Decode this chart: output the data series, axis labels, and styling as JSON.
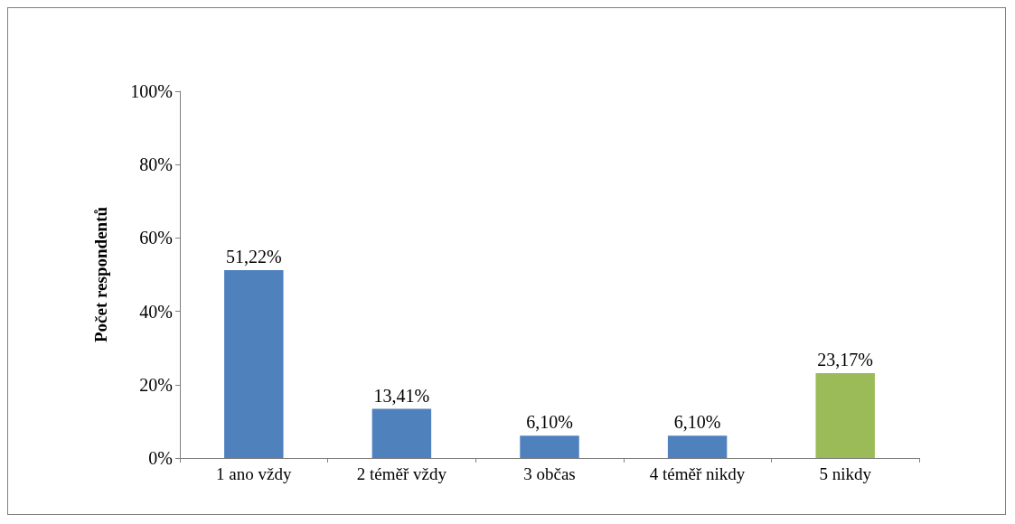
{
  "chart_data": {
    "type": "bar",
    "ylabel": "Počet respondentů",
    "categories": [
      "1 ano vždy",
      "2 téměř vždy",
      "3 občas",
      "4 téměř nikdy",
      "5 nikdy"
    ],
    "values": [
      51.22,
      13.41,
      6.1,
      6.1,
      23.17
    ],
    "colors": [
      "#4f81bd",
      "#4f81bd",
      "#4f81bd",
      "#4f81bd",
      "#9bbb59"
    ],
    "value_labels": [
      "51,22%",
      "13,41%",
      "6,10%",
      "6,10%",
      "23,17%"
    ],
    "ylim": [
      0,
      100
    ],
    "yticks": [
      {
        "value": 0,
        "label": "0%"
      },
      {
        "value": 20,
        "label": "20%"
      },
      {
        "value": 40,
        "label": "40%"
      },
      {
        "value": 60,
        "label": "60%"
      },
      {
        "value": 80,
        "label": "80%"
      },
      {
        "value": 100,
        "label": "100%"
      }
    ],
    "grid": false
  }
}
